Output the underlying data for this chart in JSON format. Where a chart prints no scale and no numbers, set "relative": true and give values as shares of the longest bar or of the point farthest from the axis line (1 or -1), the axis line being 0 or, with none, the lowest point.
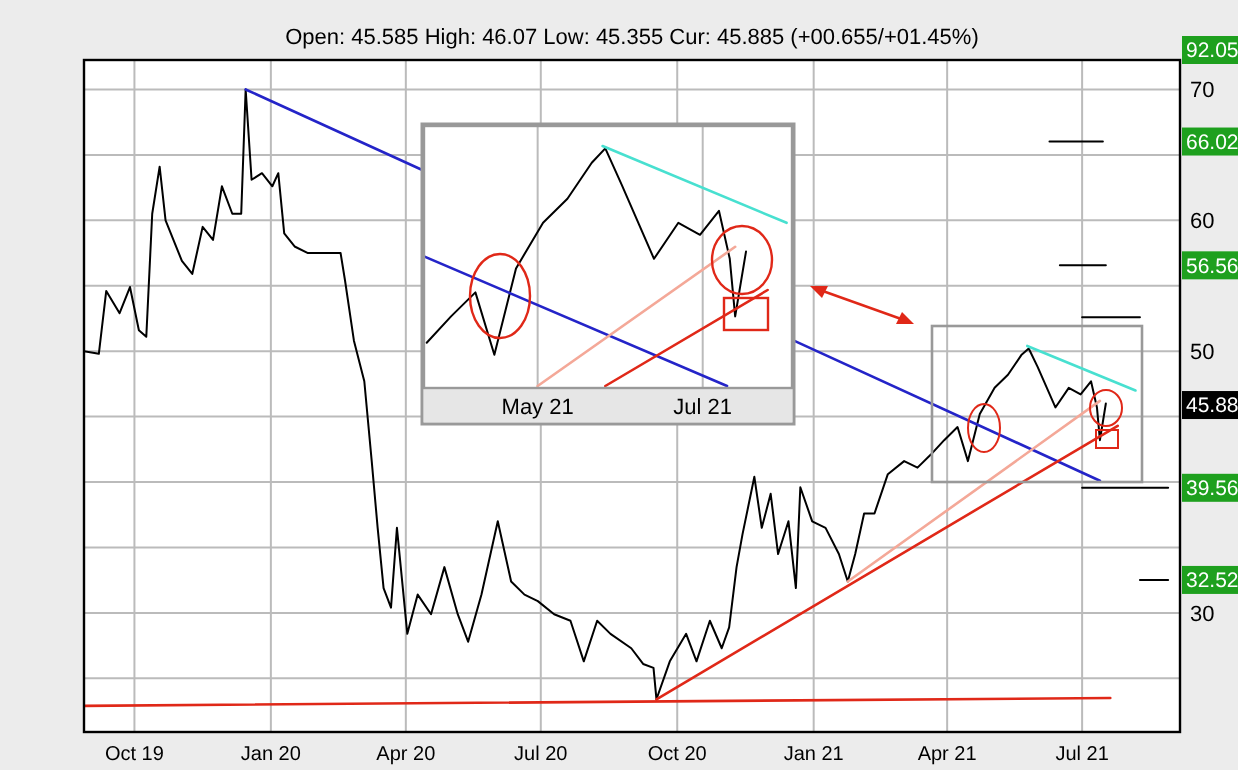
{
  "chart_data": [
    {
      "type": "line",
      "title": "Open: 45.585 High: 46.07 Low: 45.355 Cur: 45.885 (+00.655/+01.45%)",
      "xlim": [
        "2019-08-28",
        "2021-09-05"
      ],
      "xticks": [
        {
          "value": "2019-10-01",
          "label": "Oct 19"
        },
        {
          "value": "2020-01-01",
          "label": "Jan 20"
        },
        {
          "value": "2020-04-01",
          "label": "Apr 20"
        },
        {
          "value": "2020-07-01",
          "label": "Jul 20"
        },
        {
          "value": "2020-10-01",
          "label": "Oct 20"
        },
        {
          "value": "2021-01-01",
          "label": "Jan 21"
        },
        {
          "value": "2021-04-01",
          "label": "Apr 21"
        },
        {
          "value": "2021-07-01",
          "label": "Jul 21"
        }
      ],
      "ylim": [
        20.9,
        72.25
      ],
      "yticks": [
        {
          "value": 25,
          "label": null
        },
        30,
        {
          "value": 35,
          "label": null
        },
        {
          "value": 40,
          "label": null
        },
        {
          "value": 45,
          "label": null
        },
        50,
        {
          "value": 55,
          "label": null
        },
        60,
        {
          "value": 65,
          "label": null
        },
        70
      ],
      "grid": true,
      "series": [
        {
          "color": "#000000",
          "x": [
            "2019-08-28",
            "2019-09-07",
            "2019-09-12",
            "2019-09-21",
            "2019-09-28",
            "2019-10-04",
            "2019-10-09",
            "2019-10-13",
            "2019-10-18",
            "2019-10-22",
            "2019-11-02",
            "2019-11-09",
            "2019-11-16",
            "2019-11-23",
            "2019-11-29",
            "2019-12-06",
            "2019-12-12",
            "2019-12-15",
            "2019-12-19",
            "2019-12-26",
            "2020-01-02",
            "2020-01-06",
            "2020-01-10",
            "2020-01-17",
            "2020-01-26",
            "2020-02-06",
            "2020-02-17",
            "2020-02-20",
            "2020-02-26",
            "2020-03-04",
            "2020-03-09",
            "2020-03-13",
            "2020-03-17",
            "2020-03-22",
            "2020-03-26",
            "2020-04-02",
            "2020-04-09",
            "2020-04-18",
            "2020-04-27",
            "2020-05-06",
            "2020-05-13",
            "2020-05-22",
            "2020-06-02",
            "2020-06-11",
            "2020-06-20",
            "2020-06-29",
            "2020-07-10",
            "2020-07-21",
            "2020-07-30",
            "2020-08-08",
            "2020-08-17",
            "2020-08-31",
            "2020-09-08",
            "2020-09-15",
            "2020-09-17",
            "2020-09-26",
            "2020-10-07",
            "2020-10-14",
            "2020-10-23",
            "2020-10-31",
            "2020-11-05",
            "2020-11-10",
            "2020-11-14",
            "2020-11-22",
            "2020-11-27",
            "2020-12-03",
            "2020-12-08",
            "2020-12-15",
            "2020-12-20",
            "2020-12-23",
            "2020-12-31",
            "2021-01-09",
            "2021-01-18",
            "2021-01-24",
            "2021-01-29",
            "2021-02-04",
            "2021-02-11",
            "2021-02-20",
            "2021-03-03",
            "2021-03-12",
            "2021-03-21",
            "2021-03-30",
            "2021-04-08",
            "2021-04-15",
            "2021-04-23",
            "2021-05-03",
            "2021-05-12",
            "2021-05-21",
            "2021-05-26",
            "2021-06-01",
            "2021-06-13",
            "2021-06-22",
            "2021-06-30",
            "2021-07-07",
            "2021-07-11",
            "2021-07-13",
            "2021-07-17"
          ],
          "values": [
            50.0,
            49.8,
            54.6,
            52.9,
            54.9,
            51.6,
            51.1,
            60.5,
            64.1,
            60.0,
            56.9,
            55.9,
            59.5,
            58.5,
            62.6,
            60.5,
            60.5,
            70.0,
            63.1,
            63.6,
            62.6,
            63.6,
            59.0,
            58.0,
            57.5,
            57.5,
            57.5,
            55.4,
            50.8,
            47.7,
            41.6,
            36.5,
            31.9,
            30.4,
            36.5,
            28.4,
            31.4,
            29.9,
            33.5,
            29.9,
            27.8,
            31.4,
            37.0,
            32.4,
            31.4,
            30.9,
            29.9,
            29.4,
            26.3,
            29.4,
            28.4,
            27.3,
            26.1,
            25.8,
            23.4,
            26.3,
            28.4,
            26.3,
            29.4,
            27.3,
            28.9,
            33.5,
            36.0,
            40.4,
            36.5,
            39.1,
            34.5,
            37.0,
            31.9,
            39.6,
            37.0,
            36.5,
            34.5,
            32.4,
            34.5,
            37.6,
            37.6,
            40.6,
            41.6,
            41.1,
            42.1,
            43.2,
            44.2,
            41.6,
            45.2,
            47.2,
            48.2,
            49.7,
            50.2,
            48.8,
            45.7,
            47.2,
            46.7,
            47.7,
            45.7,
            43.2,
            46.0
          ]
        },
        {
          "color": "#2424c8",
          "x": [
            "2019-12-15",
            "2020-04-11",
            "2020-08-01",
            "2020-12-15",
            "2021-07-13"
          ],
          "values": [
            70.0,
            63.9,
            null,
            51.0,
            40.1
          ]
        },
        {
          "color": "#e02818",
          "x": [
            "2019-08-28",
            "2021-07-20"
          ],
          "values": [
            22.9,
            23.5
          ]
        },
        {
          "color": "#e02818",
          "x": [
            "2020-09-17",
            "2021-07-25"
          ],
          "values": [
            23.4,
            44.3
          ]
        },
        {
          "color": "#f4a898",
          "x": [
            "2021-01-24",
            "2021-07-13"
          ],
          "values": [
            32.4,
            46.2
          ]
        },
        {
          "color": "#48e0d0",
          "x": [
            "2021-05-25",
            "2021-08-06"
          ],
          "values": [
            50.4,
            47.0
          ]
        },
        {
          "color": "#000000",
          "x": [
            "2021-06-09",
            "2021-07-15"
          ],
          "values": [
            66.02,
            66.02
          ]
        },
        {
          "color": "#000000",
          "x": [
            "2021-06-16",
            "2021-07-17"
          ],
          "values": [
            56.56,
            56.56
          ]
        },
        {
          "color": "#000000",
          "x": [
            "2021-07-01",
            "2021-08-09"
          ],
          "values": [
            52.6,
            52.6
          ]
        },
        {
          "color": "#000000",
          "x": [
            "2021-07-01",
            "2021-08-28"
          ],
          "values": [
            39.56,
            39.56
          ]
        },
        {
          "color": "#000000",
          "x": [
            "2021-08-09",
            "2021-08-28"
          ],
          "values": [
            32.52,
            32.52
          ]
        }
      ],
      "annotations": [
        "92.05",
        {
          "text": "66.02",
          "y": 66.02
        },
        {
          "text": "56.56",
          "y": 56.56
        },
        {
          "text": "39.56",
          "y": 39.56
        },
        {
          "text": "32.52",
          "y": 32.52
        },
        {
          "text": "45.88",
          "y": 45.885
        }
      ]
    },
    {
      "type": "line",
      "xlim": [
        "2021-03-20",
        "2021-08-03"
      ],
      "xticks": [
        {
          "value": "2021-05-01",
          "label": "May 21"
        },
        {
          "value": "2021-07-01",
          "label": "Jul 21"
        }
      ],
      "relative": true,
      "grid": "x",
      "series": [
        {
          "color": "#000000",
          "x": [
            "2021-03-21",
            "2021-03-30",
            "2021-04-08",
            "2021-04-15",
            "2021-04-23",
            "2021-05-03",
            "2021-05-12",
            "2021-05-21",
            "2021-05-26",
            "2021-06-01",
            "2021-06-13",
            "2021-06-22",
            "2021-06-30",
            "2021-07-07",
            "2021-07-11",
            "2021-07-13",
            "2021-07-17"
          ],
          "values": [
            0.18,
            0.29,
            0.39,
            0.13,
            0.49,
            0.68,
            0.78,
            0.93,
            0.99,
            0.84,
            0.53,
            0.68,
            0.63,
            0.73,
            0.53,
            0.29,
            0.56
          ]
        },
        {
          "color": "#2424c8",
          "x": [
            "2021-03-20",
            "2021-07-10"
          ],
          "values": [
            0.54,
            0
          ]
        },
        {
          "color": "#f4a898",
          "x": [
            "2021-05-01",
            "2021-07-13"
          ],
          "values": [
            0,
            0.58
          ]
        },
        {
          "color": "#e02818",
          "x": [
            "2021-05-26",
            "2021-07-25"
          ],
          "values": [
            0,
            0.4
          ]
        },
        {
          "color": "#48e0d0",
          "x": [
            "2021-05-25",
            "2021-08-01"
          ],
          "values": [
            1,
            0.68
          ]
        }
      ]
    }
  ]
}
